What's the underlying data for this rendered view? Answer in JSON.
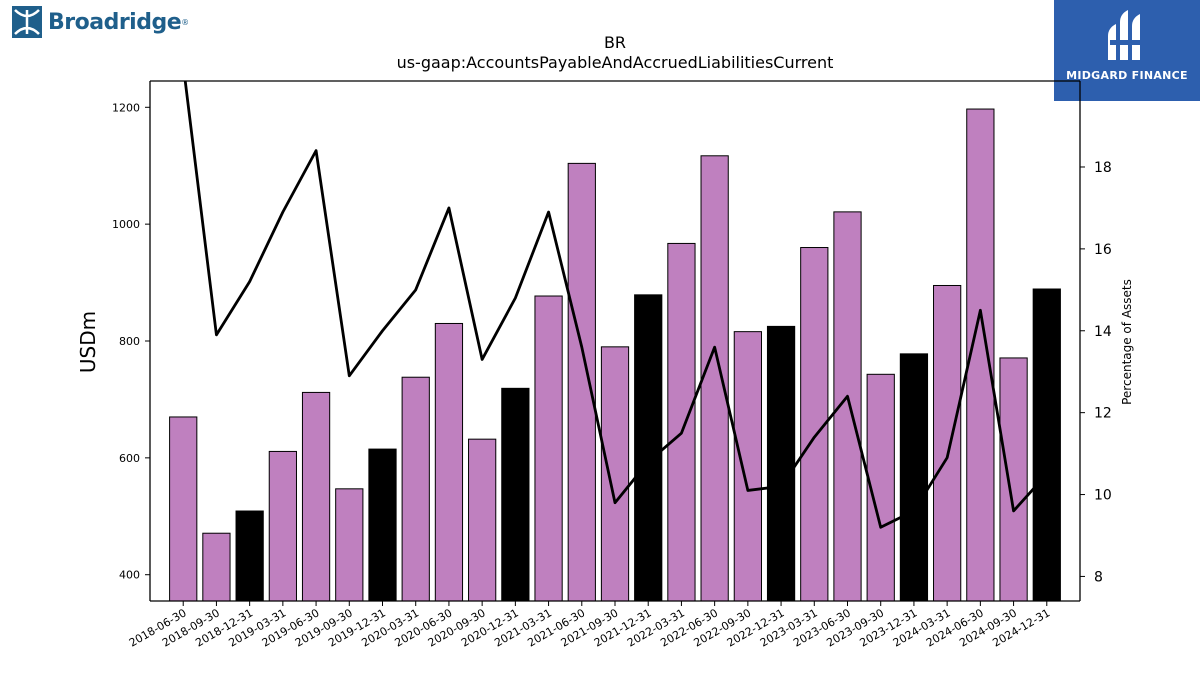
{
  "logo_left": {
    "text": "Broadridge",
    "mark": "®",
    "icon": "broadridge-logo-icon",
    "color": "#1f5f8b"
  },
  "logo_right": {
    "text": "MIDGARD FINANCE",
    "icon": "midgard-finance-logo-icon",
    "color": "#2d5fae"
  },
  "chart_data": {
    "type": "bar",
    "title": "BR",
    "subtitle": "us-gaap:AccountsPayableAndAccruedLiabilitiesCurrent",
    "ylabel": "USDm",
    "y2label": "Percentage of Assets",
    "ylim": [
      355,
      1245
    ],
    "y2lim": [
      7.4,
      20.1
    ],
    "yticks": [
      400,
      600,
      800,
      1000,
      1200
    ],
    "y2ticks": [
      8,
      10,
      12,
      14,
      16,
      18
    ],
    "grid": false,
    "colors": {
      "bar_quarter": "#bf80bf",
      "bar_year_end": "#000000",
      "line": "#000000"
    },
    "categories": [
      "2018-06-30",
      "2018-09-30",
      "2018-12-31",
      "2019-03-31",
      "2019-06-30",
      "2019-09-30",
      "2019-12-31",
      "2020-03-31",
      "2020-06-30",
      "2020-09-30",
      "2020-12-31",
      "2021-03-31",
      "2021-06-30",
      "2021-09-30",
      "2021-12-31",
      "2022-03-31",
      "2022-06-30",
      "2022-09-30",
      "2022-12-31",
      "2023-03-31",
      "2023-06-30",
      "2023-09-30",
      "2023-12-31",
      "2024-03-31",
      "2024-06-30",
      "2024-09-30",
      "2024-12-31"
    ],
    "values": [
      670,
      471,
      509,
      611,
      712,
      547,
      615,
      738,
      830,
      632,
      719,
      877,
      1104,
      790,
      879,
      967,
      1117,
      816,
      825,
      960,
      1021,
      743,
      778,
      895,
      1197,
      771,
      889
    ],
    "year_end": [
      false,
      false,
      true,
      false,
      false,
      false,
      true,
      false,
      false,
      false,
      true,
      false,
      false,
      false,
      true,
      false,
      false,
      false,
      true,
      false,
      false,
      false,
      true,
      false,
      false,
      false,
      true
    ],
    "series": [
      {
        "axis": "right",
        "values": [
          20.5,
          13.9,
          15.2,
          16.9,
          18.4,
          12.9,
          14.0,
          15.0,
          17.0,
          13.3,
          14.8,
          16.9,
          13.6,
          9.8,
          10.8,
          11.5,
          13.6,
          10.1,
          10.2,
          11.4,
          12.4,
          9.2,
          9.6,
          10.9,
          14.5,
          9.6,
          10.5
        ]
      }
    ]
  }
}
